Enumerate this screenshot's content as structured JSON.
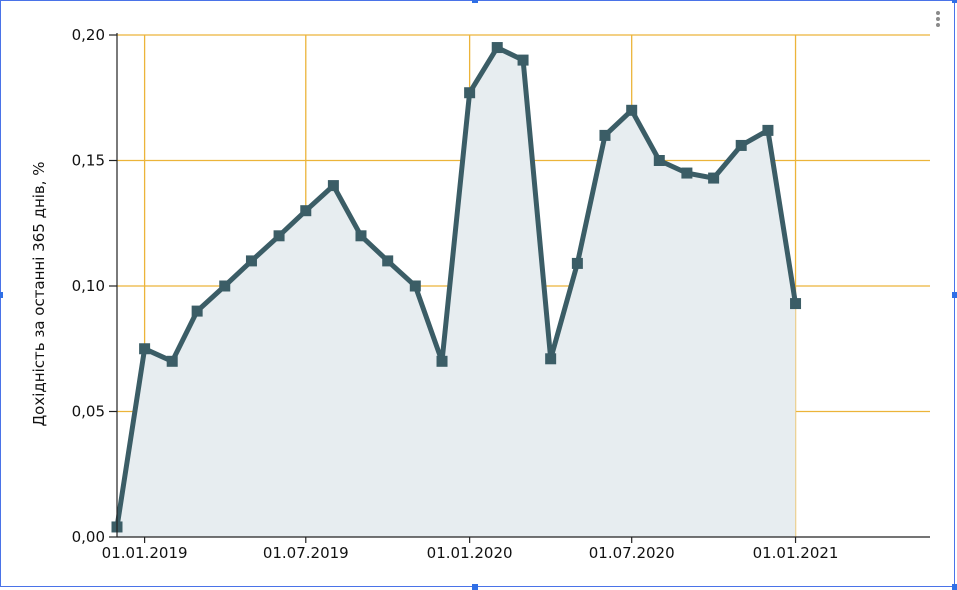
{
  "chart_data": {
    "type": "area",
    "ylabel": "Дохідність за останні 365 днів, %",
    "xlabel": "",
    "ylim": [
      0,
      0.2
    ],
    "y_ticks": [
      "0,00",
      "0,05",
      "0,10",
      "0,15",
      "0,20"
    ],
    "y_tick_values": [
      0,
      0.05,
      0.1,
      0.15,
      0.2
    ],
    "x_ticks": [
      "01.01.2019",
      "01.07.2019",
      "01.01.2020",
      "01.07.2020",
      "01.01.2021"
    ],
    "x_tick_values": [
      "2019-01-01",
      "2019-07-01",
      "2020-01-01",
      "2020-07-01",
      "2021-01-01"
    ],
    "xlim": [
      "2018-12-01",
      "2021-06-01"
    ],
    "grid": true,
    "series": [
      {
        "x": [
          "2018-12-01",
          "2019-01-01",
          "2019-02-01",
          "2019-03-01",
          "2019-04-01",
          "2019-05-01",
          "2019-06-01",
          "2019-07-01",
          "2019-08-01",
          "2019-09-01",
          "2019-10-01",
          "2019-11-01",
          "2019-12-01",
          "2020-01-01",
          "2020-02-01",
          "2020-03-01",
          "2020-04-01",
          "2020-05-01",
          "2020-06-01",
          "2020-07-01",
          "2020-08-01",
          "2020-09-01",
          "2020-10-01",
          "2020-11-01",
          "2020-12-01",
          "2021-01-01"
        ],
        "values": [
          0.004,
          0.075,
          0.07,
          0.09,
          0.1,
          0.11,
          0.12,
          0.13,
          0.14,
          0.12,
          0.11,
          0.1,
          0.07,
          0.177,
          0.195,
          0.19,
          0.071,
          0.109,
          0.16,
          0.17,
          0.15,
          0.145,
          0.143,
          0.156,
          0.162,
          0.093
        ]
      }
    ],
    "colors": {
      "line": "#3b5d66",
      "fill": "#e7edf0",
      "grid": "#ecb43a",
      "axis": "#222222",
      "frame": "#4a73e8"
    }
  }
}
